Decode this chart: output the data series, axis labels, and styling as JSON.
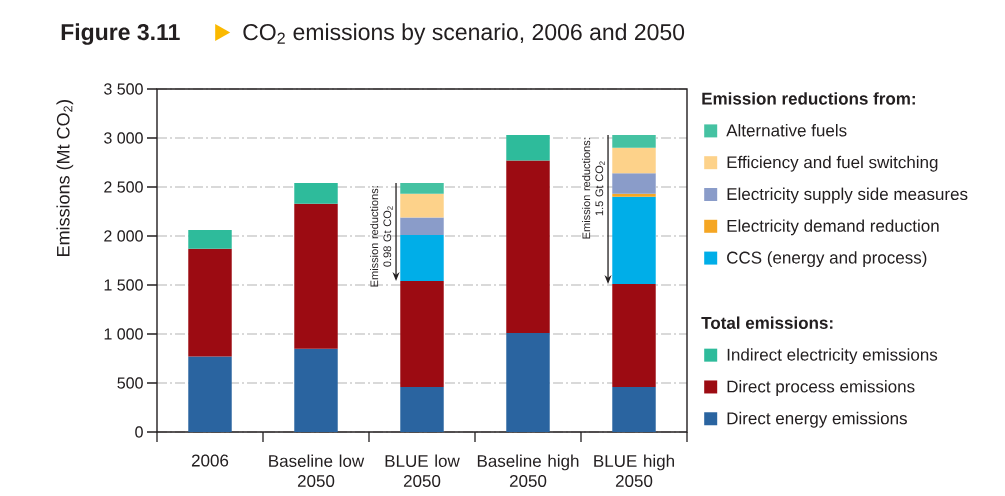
{
  "chart_data": {
    "type": "bar",
    "stacked": true,
    "title": "Figure 3.11",
    "subtitle": "CO$_{2}$ emissions by scenario, 2006 and 2050",
    "ylabel": "Emissions (Mt CO$_{2}$)",
    "categories": [
      "2006",
      "Baseline low 2050",
      "BLUE low 2050",
      "Baseline high 2050",
      "BLUE high 2050"
    ],
    "series": [
      {
        "name": "Direct energy emissions",
        "color": "#2a64a0",
        "values": [
          770,
          850,
          460,
          1010,
          460
        ]
      },
      {
        "name": "Direct process emissions",
        "color": "#9c0b12",
        "values": [
          1100,
          1480,
          1080,
          1760,
          1050
        ]
      },
      {
        "name": "Indirect electricity emissions",
        "color": "#2ebb9b",
        "values": [
          190,
          210,
          null,
          260,
          null
        ]
      },
      {
        "name": "CCS (energy and process)",
        "color": "#00aee8",
        "values": [
          null,
          null,
          470,
          null,
          890
        ]
      },
      {
        "name": "Electricity demand reduction",
        "color": "#f5a623",
        "values": [
          null,
          null,
          null,
          null,
          30
        ]
      },
      {
        "name": "Electricity supply side measures",
        "color": "#8a9cc9",
        "values": [
          null,
          null,
          180,
          null,
          210
        ]
      },
      {
        "name": "Efficiency and fuel switching",
        "color": "#fdd28a",
        "values": [
          null,
          null,
          240,
          null,
          260
        ]
      },
      {
        "name": "Alternative fuels",
        "color": "#45c2a2",
        "values": [
          null,
          null,
          110,
          null,
          130
        ]
      }
    ],
    "ylim": [
      0,
      3500
    ],
    "yticks": [
      0,
      500,
      {
        "value": 1000,
        "label": "1 000"
      },
      {
        "value": 1500,
        "label": "1 500"
      },
      {
        "value": 2000,
        "label": "2 000"
      },
      {
        "value": 2500,
        "label": "2 500"
      },
      {
        "value": 3000,
        "label": "3 000"
      },
      {
        "value": 3500,
        "label": "3 500"
      }
    ],
    "grid": "y",
    "legend": "right",
    "annotations": [
      "Emission reductions from:",
      "Total emissions:",
      {
        "text": "Emission reductions: 0.98 Gt CO$_{2}$",
        "x": "BLUE low 2050",
        "y": 2540
      },
      {
        "text": "Emission reductions: 1.5 Gt CO$_{2}$",
        "x": "BLUE high 2050",
        "y": 3030
      }
    ]
  }
}
